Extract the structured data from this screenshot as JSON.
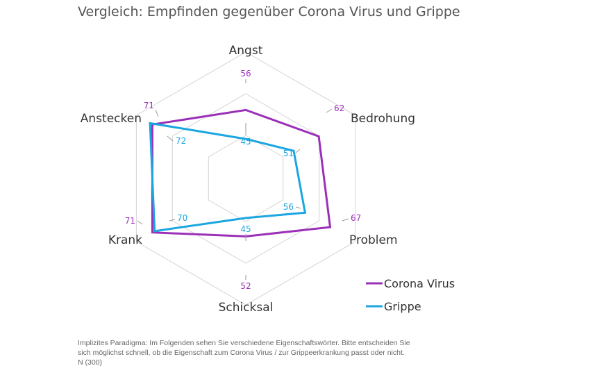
{
  "page": {
    "title": "Vergleich: Empfinden gegenüber Corona Virus und Grippe",
    "footnote": [
      "Implizites Paradigma: Im Folgenden sehen Sie verschiedene Eigenschaftswörter. Bitte entscheiden Sie",
      "sich möglichst schnell, ob die Eigenschaft zum Corona Virus / zur Grippeerkrankung passt oder nicht.",
      "N (300)"
    ]
  },
  "colors": {
    "corona": "#9b30b8",
    "grippe": "#1aa6e0",
    "grid": "#d4d4d4",
    "leader": "#999999"
  },
  "chart_data": {
    "type": "radar",
    "title": "Vergleich: Empfinden gegenüber Corona Virus und Grippe",
    "categories": [
      "Angst",
      "Bedrohung",
      "Problem",
      "Schicksal",
      "Krank",
      "Anstecken"
    ],
    "series": [
      {
        "name": "Corona Virus",
        "values": [
          56,
          62,
          67,
          52,
          71,
          71
        ]
      },
      {
        "name": "Grippe",
        "values": [
          45,
          51,
          56,
          45,
          70,
          72
        ]
      }
    ],
    "grid": true,
    "legend_position": "bottom-right"
  }
}
